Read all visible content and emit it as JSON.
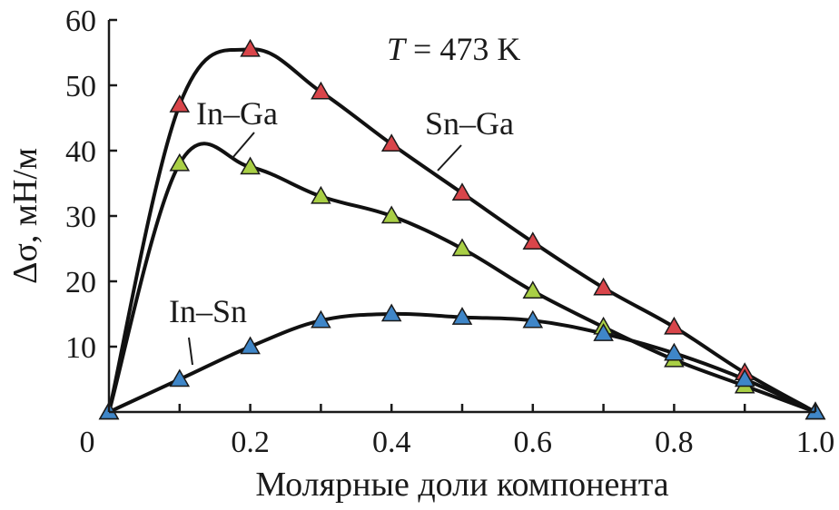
{
  "chart_data": {
    "type": "line",
    "title": "",
    "annotation_temperature": {
      "var": "T",
      "rest": " = 473 K"
    },
    "xlabel": "Молярные доли компонента",
    "ylabel": "Δσ, мН/м",
    "xlim": [
      0,
      1.0
    ],
    "ylim": [
      0,
      60
    ],
    "x_ticks": [
      0,
      0.2,
      0.4,
      0.6,
      0.8,
      1.0
    ],
    "x_tick_labels": [
      "0",
      "0.2",
      "0.4",
      "0.6",
      "0.8",
      "1.0"
    ],
    "y_ticks": [
      10,
      20,
      30,
      40,
      50,
      60
    ],
    "y_tick_labels": [
      "10",
      "20",
      "30",
      "40",
      "50",
      "60"
    ],
    "grid": false,
    "legend": "none",
    "series": [
      {
        "name": "Sn–Ga",
        "marker_color": "#d9454a",
        "x": [
          0.0,
          0.1,
          0.2,
          0.3,
          0.4,
          0.5,
          0.6,
          0.7,
          0.8,
          0.9,
          1.0
        ],
        "values": [
          0,
          47,
          55.5,
          49,
          41,
          33.5,
          26,
          19,
          13,
          6,
          0
        ]
      },
      {
        "name": "In–Ga",
        "marker_color": "#a9cf45",
        "x": [
          0.0,
          0.1,
          0.2,
          0.3,
          0.4,
          0.5,
          0.6,
          0.7,
          0.8,
          0.9,
          1.0
        ],
        "values": [
          0,
          38,
          37.5,
          33,
          30,
          25,
          18.5,
          13,
          8,
          4,
          0
        ]
      },
      {
        "name": "In–Sn",
        "marker_color": "#3f86c8",
        "x": [
          0.0,
          0.1,
          0.2,
          0.3,
          0.4,
          0.5,
          0.6,
          0.7,
          0.8,
          0.9,
          1.0
        ],
        "values": [
          0,
          5,
          10,
          14,
          15,
          14.5,
          14,
          12,
          9,
          5,
          0
        ]
      }
    ]
  }
}
